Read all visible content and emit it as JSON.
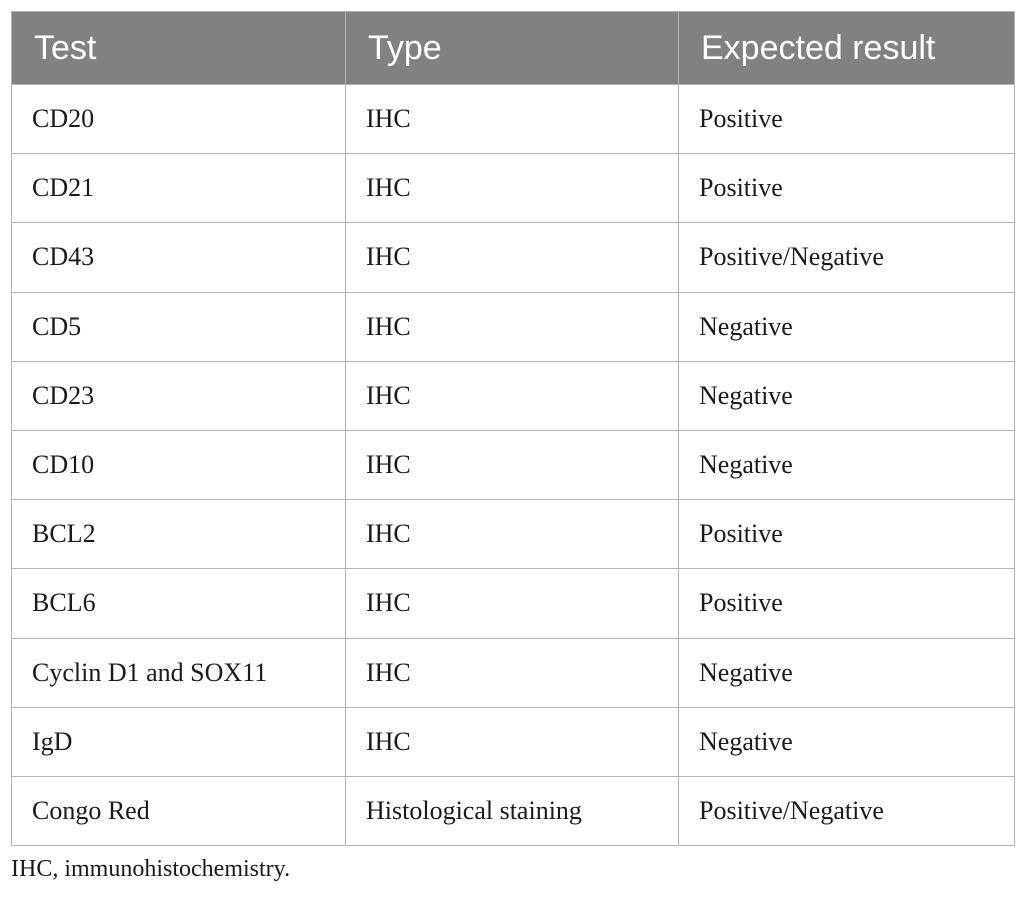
{
  "table": {
    "headers": [
      "Test",
      "Type",
      "Expected result"
    ],
    "rows": [
      [
        "CD20",
        "IHC",
        "Positive"
      ],
      [
        "CD21",
        "IHC",
        "Positive"
      ],
      [
        "CD43",
        "IHC",
        "Positive/Negative"
      ],
      [
        "CD5",
        "IHC",
        "Negative"
      ],
      [
        "CD23",
        "IHC",
        "Negative"
      ],
      [
        "CD10",
        "IHC",
        "Negative"
      ],
      [
        "BCL2",
        "IHC",
        "Positive"
      ],
      [
        "BCL6",
        "IHC",
        "Positive"
      ],
      [
        "Cyclin D1 and SOX11",
        "IHC",
        "Negative"
      ],
      [
        "IgD",
        "IHC",
        "Negative"
      ],
      [
        "Congo Red",
        "Histological staining",
        "Positive/Negative"
      ]
    ]
  },
  "footnote": "IHC, immunohistochemistry.",
  "colors": {
    "header_bg": "#818181",
    "header_text": "#ffffff",
    "border": "#b5b5b5"
  }
}
